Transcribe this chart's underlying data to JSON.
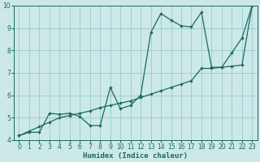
{
  "xlabel": "Humidex (Indice chaleur)",
  "bg_color": "#cce8e8",
  "grid_color": "#99cccc",
  "line_color": "#1a6b5a",
  "xlim": [
    -0.5,
    23.5
  ],
  "ylim": [
    4,
    10
  ],
  "xticks": [
    0,
    1,
    2,
    3,
    4,
    5,
    6,
    7,
    8,
    9,
    10,
    11,
    12,
    13,
    14,
    15,
    16,
    17,
    18,
    19,
    20,
    21,
    22,
    23
  ],
  "yticks": [
    4,
    5,
    6,
    7,
    8,
    9,
    10
  ],
  "line1_x": [
    0,
    1,
    2,
    3,
    4,
    5,
    6,
    7,
    8,
    9,
    10,
    11,
    12,
    13,
    14,
    15,
    16,
    17,
    18,
    19,
    20,
    21,
    22,
    23
  ],
  "line1_y": [
    4.2,
    4.35,
    4.35,
    5.2,
    5.15,
    5.2,
    5.05,
    4.65,
    4.65,
    6.35,
    5.4,
    5.55,
    6.0,
    8.8,
    9.65,
    9.35,
    9.1,
    9.05,
    9.7,
    7.25,
    7.25,
    7.9,
    8.55,
    10.0
  ],
  "line2_x": [
    0,
    1,
    2,
    3,
    4,
    5,
    6,
    7,
    8,
    9,
    10,
    11,
    12,
    13,
    14,
    15,
    16,
    17,
    18,
    19,
    20,
    21,
    22,
    23
  ],
  "line2_y": [
    4.2,
    4.4,
    4.6,
    4.8,
    5.0,
    5.1,
    5.2,
    5.3,
    5.45,
    5.55,
    5.65,
    5.75,
    5.9,
    6.05,
    6.2,
    6.35,
    6.5,
    6.65,
    7.2,
    7.2,
    7.25,
    7.3,
    7.35,
    10.0
  ]
}
